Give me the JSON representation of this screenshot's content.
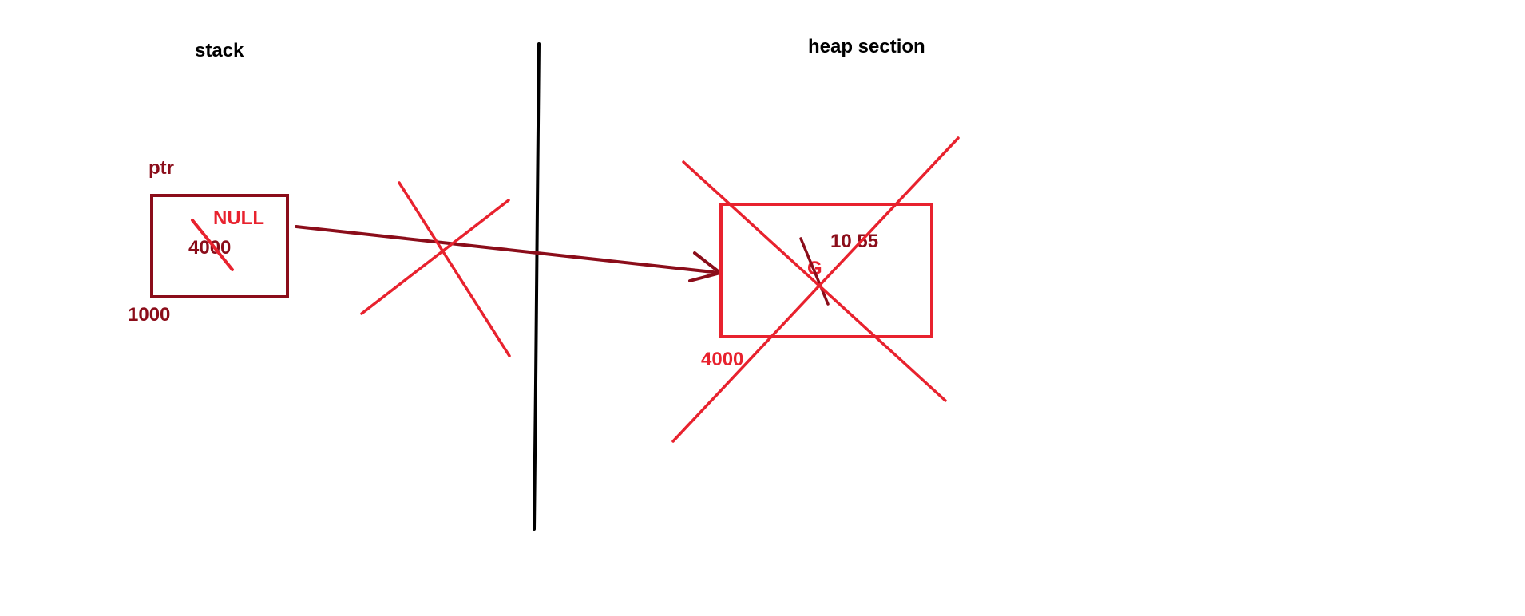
{
  "labels": {
    "stack": "stack",
    "heap_section": "heap section",
    "ptr": "ptr",
    "ptr_old_value": "4000",
    "ptr_new_value": "NULL",
    "ptr_address": "1000",
    "heap_values": "10 55",
    "heap_char": "G",
    "heap_address": "4000"
  },
  "colors": {
    "divider": "#000000",
    "dark_red": "#8b0d1a",
    "red": "#e8222e"
  }
}
